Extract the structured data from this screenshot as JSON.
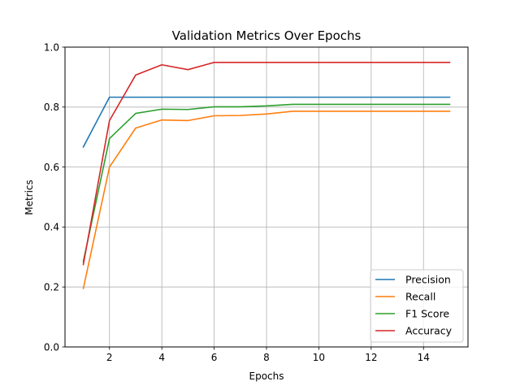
{
  "chart_data": {
    "type": "line",
    "title": "Validation Metrics Over Epochs",
    "xlabel": "Epochs",
    "ylabel": "Metrics",
    "xlim": [
      0.3,
      15.7
    ],
    "ylim": [
      0.0,
      1.0
    ],
    "x_ticks": [
      2,
      4,
      6,
      8,
      10,
      12,
      14
    ],
    "x_tick_labels": [
      "2",
      "4",
      "6",
      "8",
      "10",
      "12",
      "14"
    ],
    "y_ticks": [
      0.0,
      0.2,
      0.4,
      0.6,
      0.8,
      1.0
    ],
    "y_tick_labels": [
      "0.0",
      "0.2",
      "0.4",
      "0.6",
      "0.8",
      "1.0"
    ],
    "grid": true,
    "legend_position": "lower-right",
    "x": [
      1,
      2,
      3,
      4,
      5,
      6,
      7,
      8,
      9,
      10,
      11,
      12,
      13,
      14,
      15
    ],
    "series": [
      {
        "name": "Precision",
        "color": "#1f77b4",
        "values": [
          0.667,
          0.833,
          0.833,
          0.833,
          0.833,
          0.833,
          0.833,
          0.833,
          0.833,
          0.833,
          0.833,
          0.833,
          0.833,
          0.833,
          0.833
        ]
      },
      {
        "name": "Recall",
        "color": "#ff7f0e",
        "values": [
          0.195,
          0.6,
          0.73,
          0.757,
          0.755,
          0.771,
          0.772,
          0.777,
          0.786,
          0.786,
          0.786,
          0.786,
          0.786,
          0.786,
          0.786
        ]
      },
      {
        "name": "F1 Score",
        "color": "#2ca02c",
        "values": [
          0.285,
          0.695,
          0.779,
          0.793,
          0.792,
          0.801,
          0.801,
          0.804,
          0.809,
          0.809,
          0.809,
          0.809,
          0.809,
          0.809,
          0.809
        ]
      },
      {
        "name": "Accuracy",
        "color": "#d62728",
        "values": [
          0.275,
          0.755,
          0.907,
          0.941,
          0.925,
          0.949,
          0.949,
          0.949,
          0.949,
          0.949,
          0.949,
          0.949,
          0.949,
          0.949,
          0.949
        ]
      }
    ]
  }
}
